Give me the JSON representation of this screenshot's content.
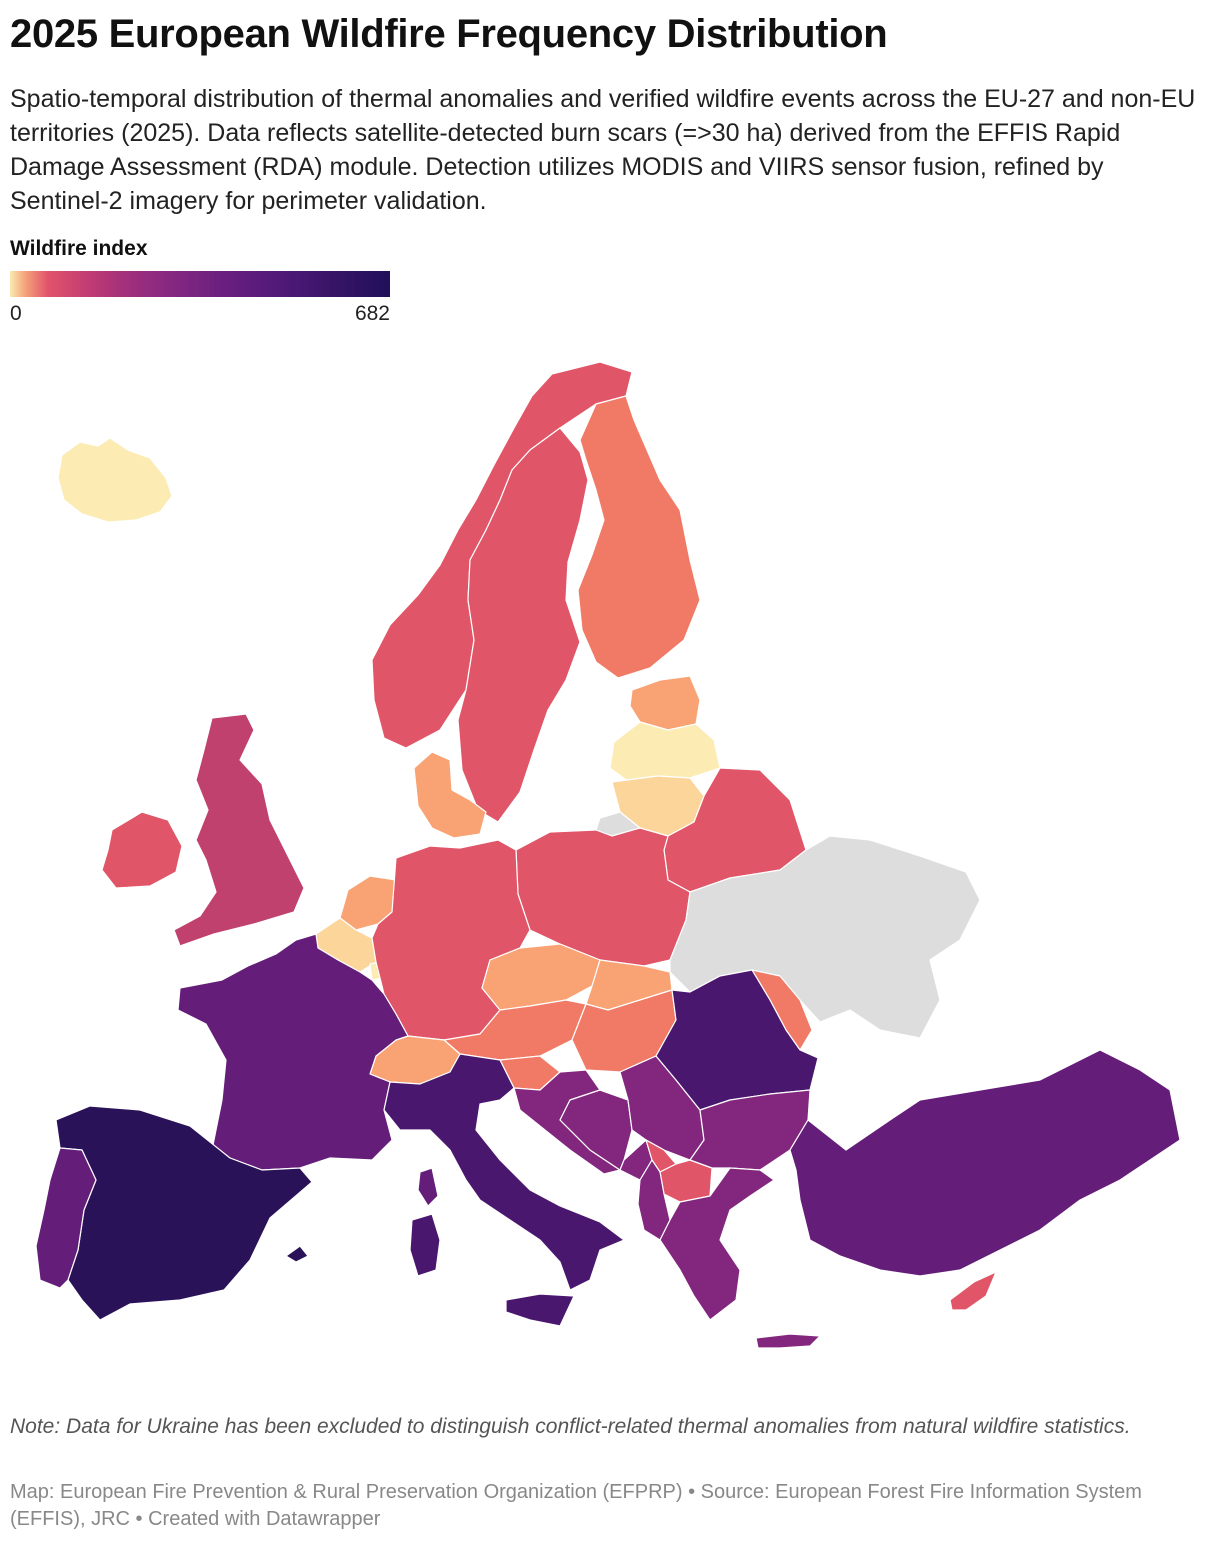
{
  "title": "2025 European Wildfire Frequency Distribution",
  "subtitle": "Spatio-temporal distribution of thermal anomalies and verified wildfire events across the EU-27 and non-EU territories (2025). Data reflects satellite-detected burn scars (=>30 ha) derived from the EFFIS Rapid Damage Assessment (RDA) module. Detection utilizes MODIS and VIIRS sensor fusion, refined by Sentinel-2 imagery for perimeter validation.",
  "legend": {
    "title": "Wildfire index",
    "min": "0",
    "max": "682"
  },
  "note": "Note: Data for Ukraine has been excluded to distinguish conflict-related thermal anomalies from natural wildfire statistics.",
  "footer": "Map: European Fire Prevention & Rural Preservation Organization (EFPRP) • Source: European Forest Fire Information System (EFFIS), JRC • Created with Datawrapper",
  "colors": {
    "very_high": "#2a1259",
    "high": "#4a176f",
    "elevated": "#641d78",
    "moderate_high": "#82267e",
    "moderate": "#c0416e",
    "medium": "#e05567",
    "low_medium": "#f07a66",
    "low": "#f9a374",
    "very_low": "#fcd59a",
    "minimal": "#fcebb3",
    "no_data": "#dddddd"
  },
  "regions": [
    {
      "name": "Iceland",
      "level": "minimal"
    },
    {
      "name": "Norway",
      "level": "medium"
    },
    {
      "name": "Sweden",
      "level": "medium"
    },
    {
      "name": "Finland",
      "level": "low_medium"
    },
    {
      "name": "Estonia",
      "level": "low"
    },
    {
      "name": "Latvia",
      "level": "minimal"
    },
    {
      "name": "Lithuania",
      "level": "very_low"
    },
    {
      "name": "Denmark",
      "level": "low"
    },
    {
      "name": "United Kingdom",
      "level": "moderate"
    },
    {
      "name": "Ireland",
      "level": "medium"
    },
    {
      "name": "Netherlands",
      "level": "low"
    },
    {
      "name": "Belgium",
      "level": "very_low"
    },
    {
      "name": "Luxembourg",
      "level": "minimal"
    },
    {
      "name": "Germany",
      "level": "medium"
    },
    {
      "name": "Poland",
      "level": "medium"
    },
    {
      "name": "Belarus",
      "level": "medium"
    },
    {
      "name": "Russia (Kaliningrad)",
      "level": "no_data"
    },
    {
      "name": "Ukraine",
      "level": "no_data"
    },
    {
      "name": "Czechia",
      "level": "low"
    },
    {
      "name": "Slovakia",
      "level": "low"
    },
    {
      "name": "Austria",
      "level": "low_medium"
    },
    {
      "name": "Hungary",
      "level": "low_medium"
    },
    {
      "name": "Switzerland",
      "level": "low"
    },
    {
      "name": "Slovenia",
      "level": "low_medium"
    },
    {
      "name": "Moldova",
      "level": "low_medium"
    },
    {
      "name": "France",
      "level": "elevated"
    },
    {
      "name": "Spain",
      "level": "very_high"
    },
    {
      "name": "Portugal",
      "level": "elevated"
    },
    {
      "name": "Italy",
      "level": "high"
    },
    {
      "name": "Croatia",
      "level": "moderate_high"
    },
    {
      "name": "Bosnia and Herzegovina",
      "level": "moderate_high"
    },
    {
      "name": "Serbia",
      "level": "moderate_high"
    },
    {
      "name": "Montenegro",
      "level": "moderate_high"
    },
    {
      "name": "Kosovo",
      "level": "medium"
    },
    {
      "name": "North Macedonia",
      "level": "medium"
    },
    {
      "name": "Albania",
      "level": "moderate_high"
    },
    {
      "name": "Romania",
      "level": "high"
    },
    {
      "name": "Bulgaria",
      "level": "moderate_high"
    },
    {
      "name": "Greece",
      "level": "moderate_high"
    },
    {
      "name": "Turkey",
      "level": "elevated"
    },
    {
      "name": "Cyprus",
      "level": "medium"
    }
  ]
}
